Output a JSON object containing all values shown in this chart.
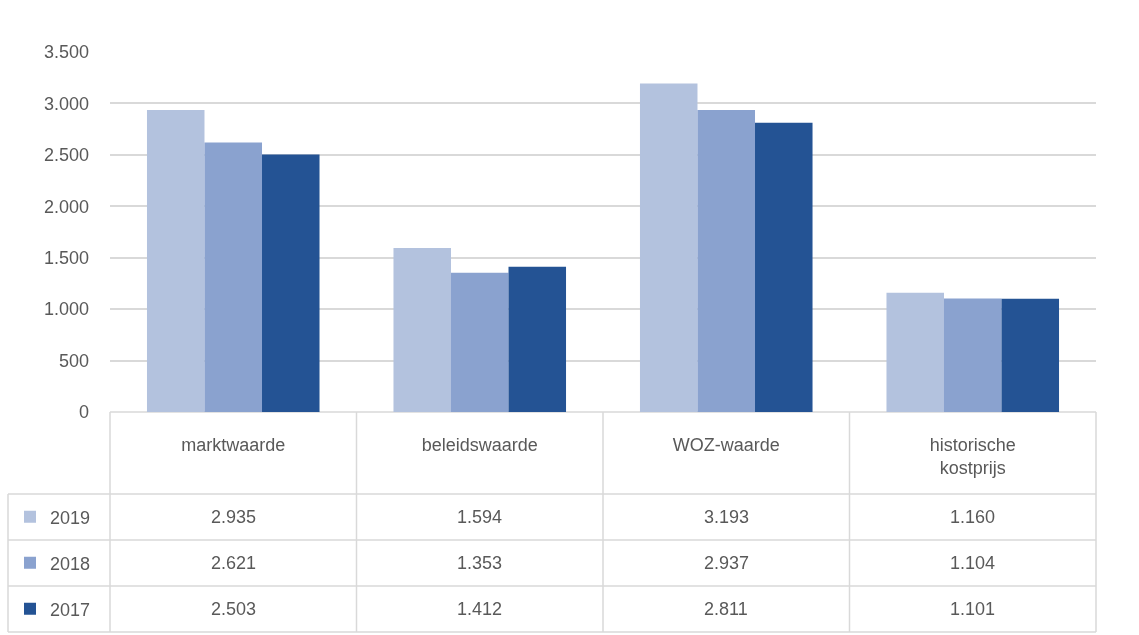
{
  "chart_data": {
    "type": "bar",
    "categories": [
      "marktwaarde",
      "beleidswaarde",
      "WOZ-waarde",
      "historische kostprijs"
    ],
    "series": [
      {
        "name": "2019",
        "color": "#b3c2de",
        "values": [
          2935,
          1594,
          3193,
          1160
        ],
        "value_labels": [
          "2.935",
          "1.594",
          "3.193",
          "1.160"
        ]
      },
      {
        "name": "2018",
        "color": "#8aa2cf",
        "values": [
          2621,
          1353,
          2937,
          1104
        ],
        "value_labels": [
          "2.621",
          "1.353",
          "2.937",
          "1.104"
        ]
      },
      {
        "name": "2017",
        "color": "#245394",
        "values": [
          2503,
          1412,
          2811,
          1101
        ],
        "value_labels": [
          "2.503",
          "1.412",
          "2.811",
          "1.101"
        ]
      }
    ],
    "ylim": [
      0,
      3500
    ],
    "yticks": [
      0,
      500,
      {
        "value": 1000,
        "label": "1.000"
      },
      {
        "value": 1500,
        "label": "1.500"
      },
      {
        "value": 2000,
        "label": "2.000"
      },
      {
        "value": 2500,
        "label": "2.500"
      },
      {
        "value": 3000,
        "label": "3.000"
      },
      {
        "value": 3500,
        "label": "3.500"
      }
    ],
    "grid": "y",
    "legend": "bottom left"
  }
}
